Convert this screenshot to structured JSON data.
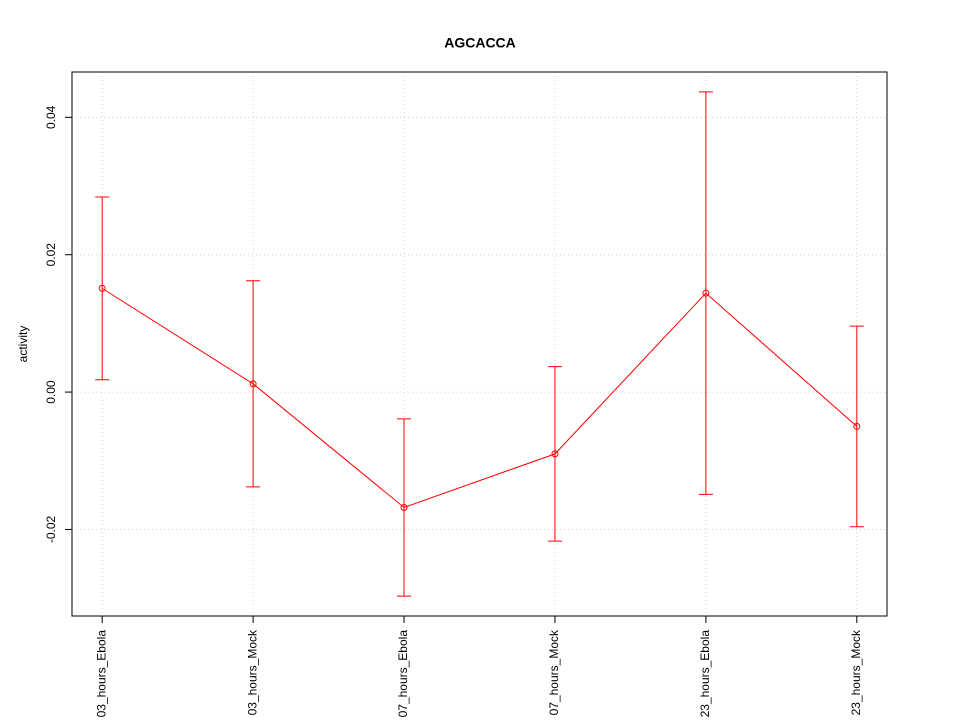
{
  "chart_data": {
    "type": "line",
    "title": "AGCACCA",
    "ylabel": "activity",
    "categories": [
      "03_hours_Ebola",
      "03_hours_Mock",
      "07_hours_Ebola",
      "07_hours_Mock",
      "23_hours_Ebola",
      "23_hours_Mock"
    ],
    "values": [
      0.0151,
      0.0012,
      -0.0168,
      -0.009,
      0.0144,
      -0.005
    ],
    "errors": [
      0.0133,
      0.015,
      0.0129,
      0.0127,
      0.0293,
      0.0146
    ],
    "color": "#ff0000",
    "ylim": [
      -0.0326,
      0.0466
    ],
    "yticks": [
      {
        "value": -0.02,
        "label": "-0.02"
      },
      {
        "value": 0,
        "label": "0.00"
      },
      {
        "value": 0.02,
        "label": "0.02"
      },
      {
        "value": 0.04,
        "label": "0.04"
      }
    ],
    "grid": true
  }
}
